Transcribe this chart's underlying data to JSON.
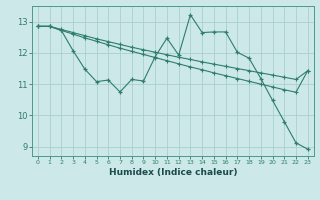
{
  "xlabel": "Humidex (Indice chaleur)",
  "background_color": "#cce8e8",
  "line_color": "#2e7d6e",
  "grid_color": "#aacfcf",
  "xlim": [
    -0.5,
    23.5
  ],
  "ylim": [
    8.7,
    13.5
  ],
  "xticks": [
    0,
    1,
    2,
    3,
    4,
    5,
    6,
    7,
    8,
    9,
    10,
    11,
    12,
    13,
    14,
    15,
    16,
    17,
    18,
    19,
    20,
    21,
    22,
    23
  ],
  "yticks": [
    9,
    10,
    11,
    12,
    13
  ],
  "line1_x": [
    0,
    1,
    2,
    3,
    4,
    5,
    6,
    7,
    8,
    9,
    10,
    11,
    12,
    13,
    14,
    15,
    16,
    17,
    18,
    19,
    20,
    21,
    22,
    23
  ],
  "line1_y": [
    12.85,
    12.85,
    12.72,
    12.6,
    12.48,
    12.37,
    12.26,
    12.15,
    12.05,
    11.95,
    11.85,
    11.75,
    11.65,
    11.55,
    11.46,
    11.36,
    11.27,
    11.18,
    11.09,
    11.0,
    10.91,
    10.82,
    10.74,
    11.43
  ],
  "line2_x": [
    0,
    1,
    2,
    3,
    4,
    5,
    6,
    7,
    8,
    9,
    10,
    11,
    12,
    13,
    14,
    15,
    16,
    17,
    18,
    19,
    20,
    21,
    22,
    23
  ],
  "line2_y": [
    12.85,
    12.85,
    12.75,
    12.65,
    12.55,
    12.45,
    12.36,
    12.27,
    12.18,
    12.1,
    12.02,
    11.94,
    11.86,
    11.79,
    11.71,
    11.64,
    11.57,
    11.5,
    11.43,
    11.36,
    11.29,
    11.22,
    11.15,
    11.43
  ],
  "line3_x": [
    0,
    1,
    2,
    3,
    4,
    5,
    6,
    7,
    8,
    9,
    10,
    11,
    12,
    13,
    14,
    15,
    16,
    17,
    18,
    19,
    20,
    21,
    22,
    23
  ],
  "line3_y": [
    12.85,
    12.85,
    12.72,
    12.07,
    11.48,
    11.08,
    11.13,
    10.75,
    11.15,
    11.1,
    11.88,
    12.47,
    11.93,
    13.22,
    12.65,
    12.67,
    12.67,
    12.02,
    11.83,
    11.18,
    10.48,
    9.8,
    9.12,
    8.92
  ]
}
